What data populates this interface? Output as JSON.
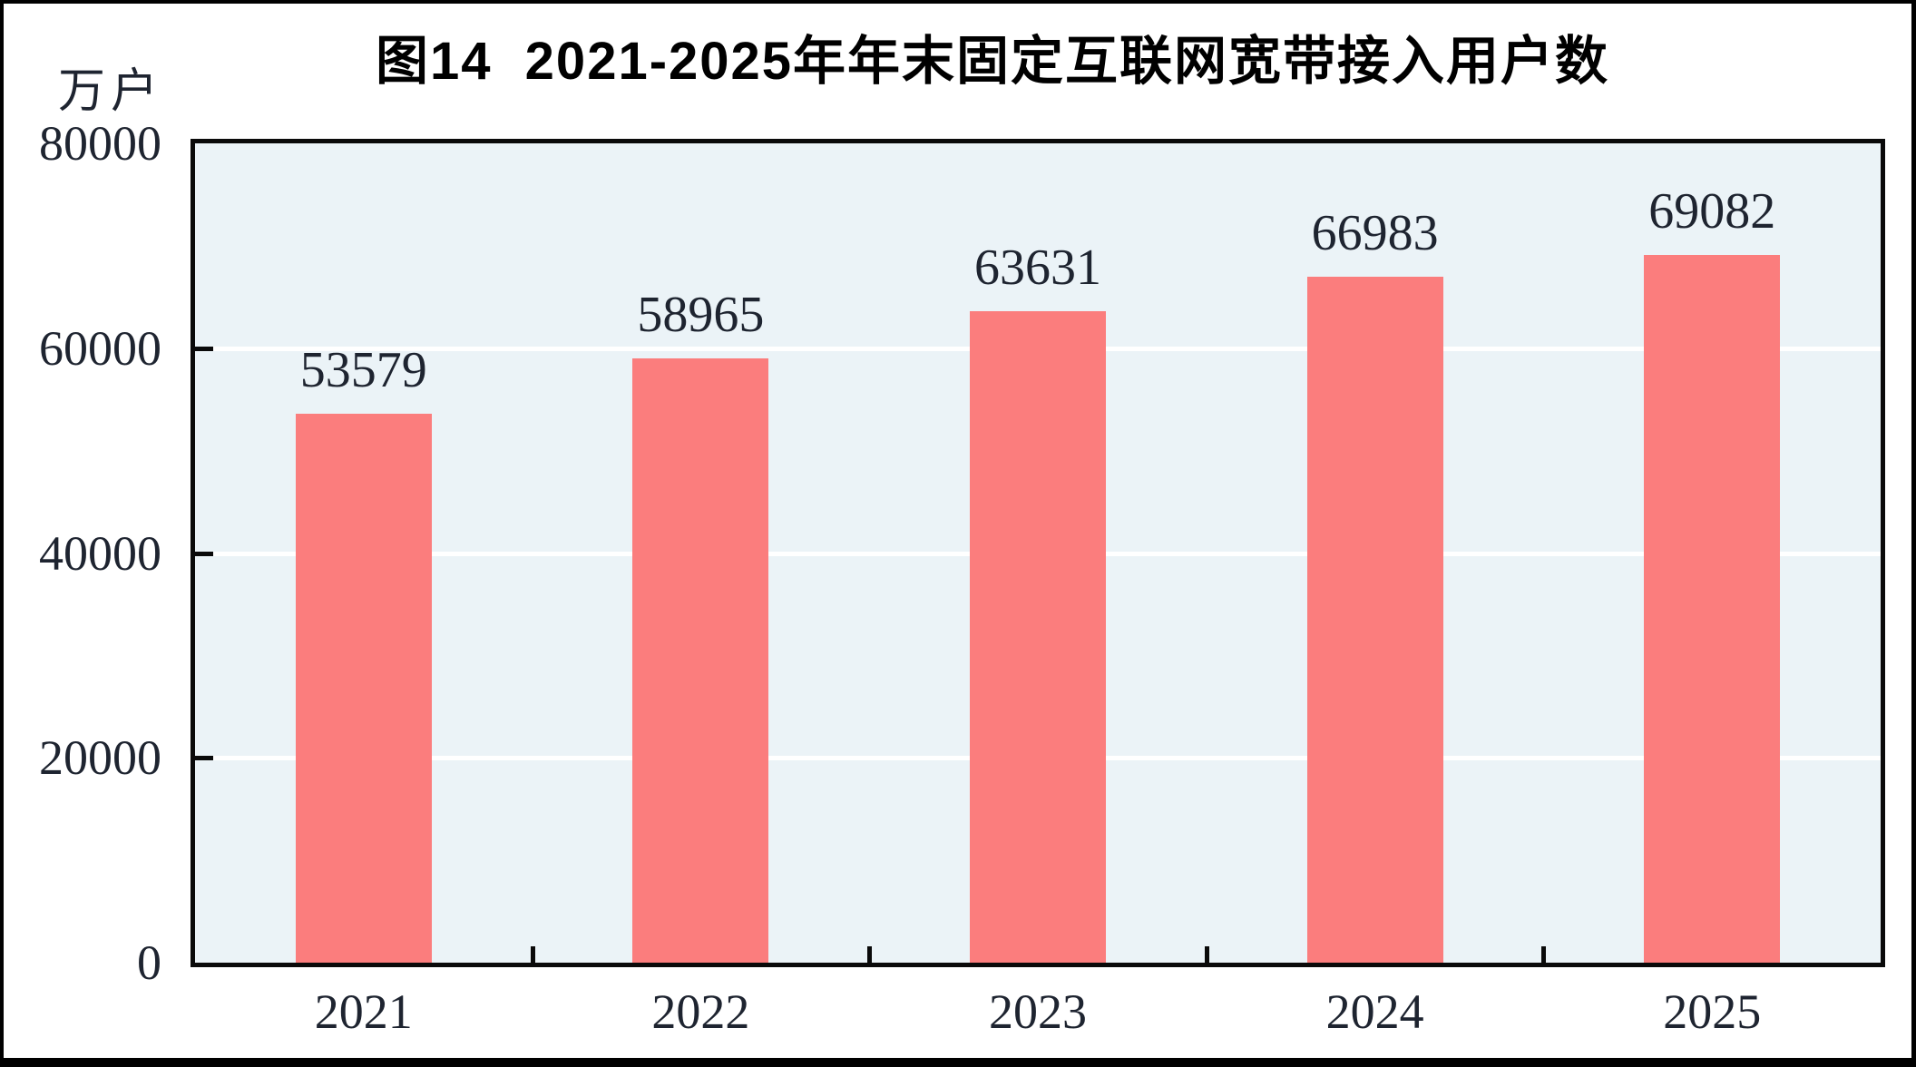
{
  "page": {
    "title": "图14  2021-2025年年末固定互联网宽带接入用户数",
    "unit_label": "万户"
  },
  "chart_data": {
    "type": "bar",
    "title": "图14  2021-2025年年末固定互联网宽带接入用户数",
    "ylabel": "万户",
    "xlabel": "",
    "categories": [
      "2021",
      "2022",
      "2023",
      "2024",
      "2025"
    ],
    "values": [
      53579,
      58965,
      63631,
      66983,
      69082
    ],
    "data_labels": [
      "53579",
      "58965",
      "63631",
      "66983",
      "69082"
    ],
    "ylim": [
      0,
      80000
    ],
    "yticks": [
      0,
      20000,
      40000,
      60000,
      80000
    ],
    "ytick_labels": [
      "0",
      "20000",
      "40000",
      "60000",
      "80000"
    ],
    "grid": "horizontal",
    "legend_position": "none"
  },
  "colors": {
    "bar": "#FB7D7D",
    "plot_background": "#EBF3F7",
    "gridline": "#FFFFFF",
    "axis": "#0A0A0A",
    "text": "#1E2430",
    "title": "#000000",
    "frame": "#000000"
  }
}
